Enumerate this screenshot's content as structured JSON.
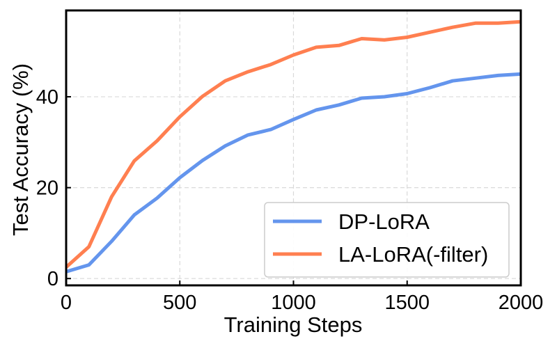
{
  "chart_data": {
    "type": "line",
    "title": "",
    "xlabel": "Training Steps",
    "ylabel": "Test Accuracy (%)",
    "xlim": [
      0,
      2000
    ],
    "ylim": [
      -1.5,
      59
    ],
    "xticks": [
      0,
      500,
      1000,
      1500,
      2000
    ],
    "yticks": [
      0,
      20,
      40
    ],
    "grid": true,
    "legend_position": "lower-right",
    "x": [
      0,
      100,
      200,
      300,
      400,
      500,
      600,
      700,
      800,
      900,
      1000,
      1100,
      1200,
      1300,
      1400,
      1500,
      1600,
      1700,
      1800,
      1900,
      2000
    ],
    "series": [
      {
        "name": "DP-LoRA",
        "color": "#6495ED",
        "values": [
          1.5,
          3.0,
          8.2,
          14.0,
          17.7,
          22.2,
          26.0,
          29.2,
          31.6,
          32.8,
          35.0,
          37.1,
          38.2,
          39.7,
          40.0,
          40.7,
          42.0,
          43.5,
          44.1,
          44.7,
          45.0
        ]
      },
      {
        "name": "LA-LoRA(-filter)",
        "color": "#FF7F50",
        "values": [
          2.5,
          7.0,
          18.0,
          25.9,
          30.3,
          35.6,
          40.1,
          43.5,
          45.5,
          47.1,
          49.2,
          50.9,
          51.3,
          52.8,
          52.5,
          53.1,
          54.2,
          55.3,
          56.2,
          56.2,
          56.5
        ]
      }
    ]
  }
}
